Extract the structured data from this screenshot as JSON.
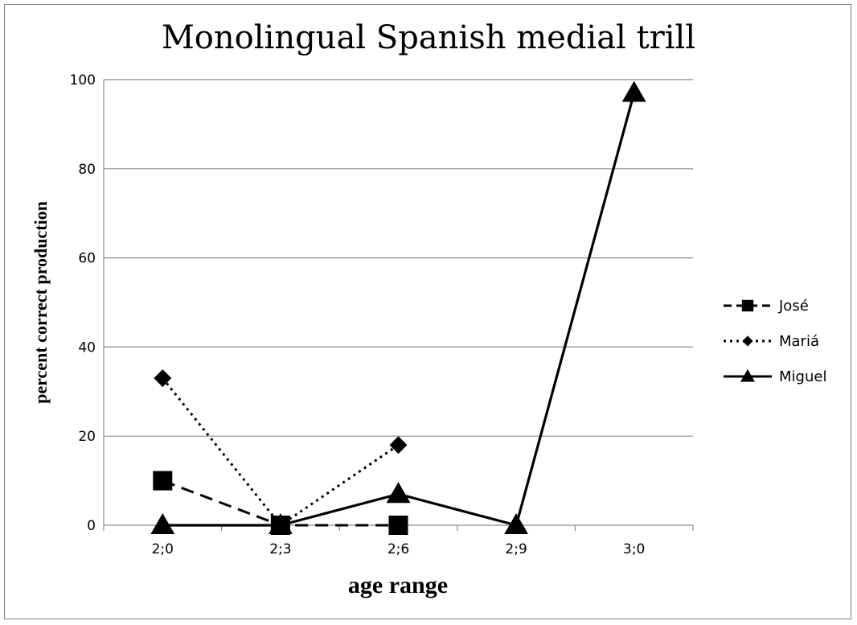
{
  "chart_data": {
    "type": "line",
    "title": "Monolingual Spanish medial trill",
    "xlabel": "age range",
    "ylabel": "percent correct production",
    "categories": [
      "2;0",
      "2;3",
      "2;6",
      "2;9",
      "3;0"
    ],
    "ylim": [
      0,
      100
    ],
    "yticks": [
      0,
      20,
      40,
      60,
      80,
      100
    ],
    "grid": true,
    "legend_position": "right",
    "series": [
      {
        "name": "José",
        "values": [
          10,
          0,
          0,
          null,
          null
        ],
        "dash": "dashed",
        "marker": "square",
        "color": "#000000"
      },
      {
        "name": "Mariá",
        "values": [
          33,
          0,
          18,
          null,
          null
        ],
        "dash": "dotted",
        "marker": "diamond",
        "color": "#000000"
      },
      {
        "name": "Miguel",
        "values": [
          0,
          0,
          7,
          0,
          97
        ],
        "dash": "solid",
        "marker": "triangle",
        "color": "#000000"
      }
    ]
  }
}
